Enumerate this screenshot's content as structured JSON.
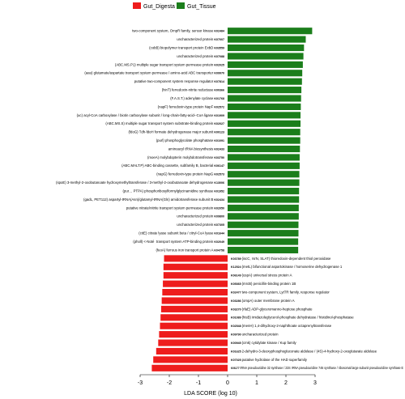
{
  "chart_data": {
    "type": "bar",
    "orientation": "horizontal",
    "xlabel": "LDA SCORE (log 10)",
    "xlim": [
      -3,
      3
    ],
    "xticks": [
      -3,
      -2,
      -1,
      0,
      1,
      2,
      3
    ],
    "legend": {
      "placement": "top",
      "entries": [
        {
          "name": "Gut_Digesta",
          "color": "#ee1c1c"
        },
        {
          "name": "Gut_Tissue",
          "color": "#1b7e1b"
        }
      ]
    },
    "bars": [
      {
        "label": "two-component system, OmpR family, sensor kinase",
        "id": "K02484",
        "value": 2.9,
        "group": "Gut_Tissue"
      },
      {
        "label": "uncharacterized protein",
        "id": "K07007",
        "value": 2.68,
        "group": "Gut_Tissue"
      },
      {
        "label": "(cobB) biopolymer transport protein ExbD",
        "id": "K03559",
        "value": 2.62,
        "group": "Gut_Tissue"
      },
      {
        "label": "uncharacterized protein",
        "id": "K07088",
        "value": 2.6,
        "group": "Gut_Tissue"
      },
      {
        "label": "(ABC.MS.P1) multiple sugar transport system permease protein",
        "id": "K02025",
        "value": 2.58,
        "group": "Gut_Tissue"
      },
      {
        "label": "(aau) glutamate/aspartate transport system permease / amino-acid ABC transporter",
        "id": "K09970",
        "value": 2.56,
        "group": "Gut_Tissue"
      },
      {
        "label": "putative two-component system response regulator",
        "id": "K07814",
        "value": 2.55,
        "group": "Gut_Tissue"
      },
      {
        "label": "(hinT) ferredoxin-nitrite reductase",
        "id": "K00366",
        "value": 2.53,
        "group": "Gut_Tissue"
      },
      {
        "label": "(F.A.S.T.) adenylate cyclase",
        "id": "K01768",
        "value": 2.52,
        "group": "Gut_Tissue"
      },
      {
        "label": "(napF) ferredoxin-type protein NapF",
        "id": "K02572",
        "value": 2.51,
        "group": "Gut_Tissue"
      },
      {
        "label": "(uc) acyl-CoA carboxylase / biotin carboxylase subunit / long-chain-fatty-acid--CoA ligase",
        "id": "K01909",
        "value": 2.5,
        "group": "Gut_Tissue"
      },
      {
        "label": "(ABC.MS.S) multiple sugar transport system substrate-binding protein",
        "id": "K02027",
        "value": 2.5,
        "group": "Gut_Tissue"
      },
      {
        "label": "(fdoG) Tdh-fdoH formate dehydrogenase major subunit",
        "id": "K00123",
        "value": 2.49,
        "group": "Gut_Tissue"
      },
      {
        "label": "(purl) phosphoglycolate phosphatase",
        "id": "K01091",
        "value": 2.49,
        "group": "Gut_Tissue"
      },
      {
        "label": "aminoacyl tRNA biosynthesis",
        "id": "K02433",
        "value": 2.48,
        "group": "Gut_Tissue"
      },
      {
        "label": "(moeA) molybdopterin molybdotransferase",
        "id": "K03750",
        "value": 2.47,
        "group": "Gut_Tissue"
      },
      {
        "label": "(ABC.MALT.P) ABC-binding cassette, subfamily B, bacterial",
        "id": "K06147",
        "value": 2.47,
        "group": "Gut_Tissue"
      },
      {
        "label": "(napG) ferredoxin-type protein NapG",
        "id": "K02573",
        "value": 2.46,
        "group": "Gut_Tissue"
      },
      {
        "label": "(spoE) 3-methyl-2-oxobutanoate hydroxymethyltransferase / 3-methyl-2-oxobutanoate dehydrogenase",
        "id": "K13006",
        "value": 2.46,
        "group": "Gut_Tissue"
      },
      {
        "label": "(pur… PTPA) phosphoribosylformylglycinamidine synthase",
        "id": "K01952",
        "value": 2.45,
        "group": "Gut_Tissue"
      },
      {
        "label": "(gadL, PET112) aspartyl-tRNA(Asn)/glutamyl-tRNA(Gln) amidotransferase subunit B",
        "id": "K02434",
        "value": 2.45,
        "group": "Gut_Tissue"
      },
      {
        "label": "putative nitrate/nitrite transport system permease protein",
        "id": "K02050",
        "value": 2.44,
        "group": "Gut_Tissue"
      },
      {
        "label": "uncharacterized protein",
        "id": "K09800",
        "value": 2.44,
        "group": "Gut_Tissue"
      },
      {
        "label": "uncharacterized protein",
        "id": "K07305",
        "value": 2.43,
        "group": "Gut_Tissue"
      },
      {
        "label": "(citE) citrate lyase subunit beta / citryl-CoA lyase",
        "id": "K01644",
        "value": 2.43,
        "group": "Gut_Tissue"
      },
      {
        "label": "(pholl) <-Noté  transport system ATP-binding protein",
        "id": "K02049",
        "value": 2.42,
        "group": "Gut_Tissue"
      },
      {
        "label": "(feoA) ferrous iron transport protein A",
        "id": "K04758",
        "value": 2.42,
        "group": "Gut_Tissue"
      },
      {
        "label": "(iscC, rsrN, SLAT) thioredoxin-dependent thiol peroxidase",
        "id": "K03789",
        "value": -2.18,
        "group": "Gut_Digesta"
      },
      {
        "label": "(metL) bifunctional aspartokinase / homoserine dehydrogenase 1",
        "id": "K12524",
        "value": -2.2,
        "group": "Gut_Digesta"
      },
      {
        "label": "(uspA) universal stress protein A",
        "id": "K06149",
        "value": -2.2,
        "group": "Gut_Digesta"
      },
      {
        "label": "(mrcB) penicillin-binding protein 1B",
        "id": "K05365",
        "value": -2.22,
        "group": "Gut_Digesta"
      },
      {
        "label": "two-component system, LytTR family, response regulator",
        "id": "K02477",
        "value": -2.24,
        "group": "Gut_Digesta"
      },
      {
        "label": "(ompA) outer membrane protein A",
        "id": "K03286",
        "value": -2.26,
        "group": "Gut_Digesta"
      },
      {
        "label": "(rfaE) ADP-glyceromanno-heptose phosphate",
        "id": "K03270",
        "value": -2.28,
        "group": "Gut_Digesta"
      },
      {
        "label": "(hisB) imidazoleglycerol-phosphate dehydratase / histidinol-phosphatase",
        "id": "K01089",
        "value": -2.3,
        "group": "Gut_Digesta"
      },
      {
        "label": "(menH) 1,4-dihydroxy-2-naphthoate octaprenyltransferase",
        "id": "K02548",
        "value": -2.32,
        "group": "Gut_Digesta"
      },
      {
        "label": "uncharacterized protein",
        "id": "K09790",
        "value": -2.35,
        "group": "Gut_Digesta"
      },
      {
        "label": "(cmk) cytidylate kinase / Kup family",
        "id": "K00945",
        "value": -2.38,
        "group": "Gut_Digesta"
      },
      {
        "label": "2-dehydro-3-deoxyphosphogluconate aldolase / (4S)-4-hydroxy-2-oxoglutarate aldolase",
        "id": "K01625",
        "value": -2.45,
        "group": "Gut_Digesta"
      },
      {
        "label": "putative hydrolase of the HAD superfamily",
        "id": "K07025",
        "value": -2.55,
        "group": "Gut_Digesta"
      },
      {
        "label": "tRNA pseudouridine 32 synthase / 23S rRNA pseudouridine 746 synthase / ribosomal large subunit pseudouridine synthase E",
        "id": "K06177",
        "value": -2.6,
        "group": "Gut_Digesta"
      }
    ]
  }
}
